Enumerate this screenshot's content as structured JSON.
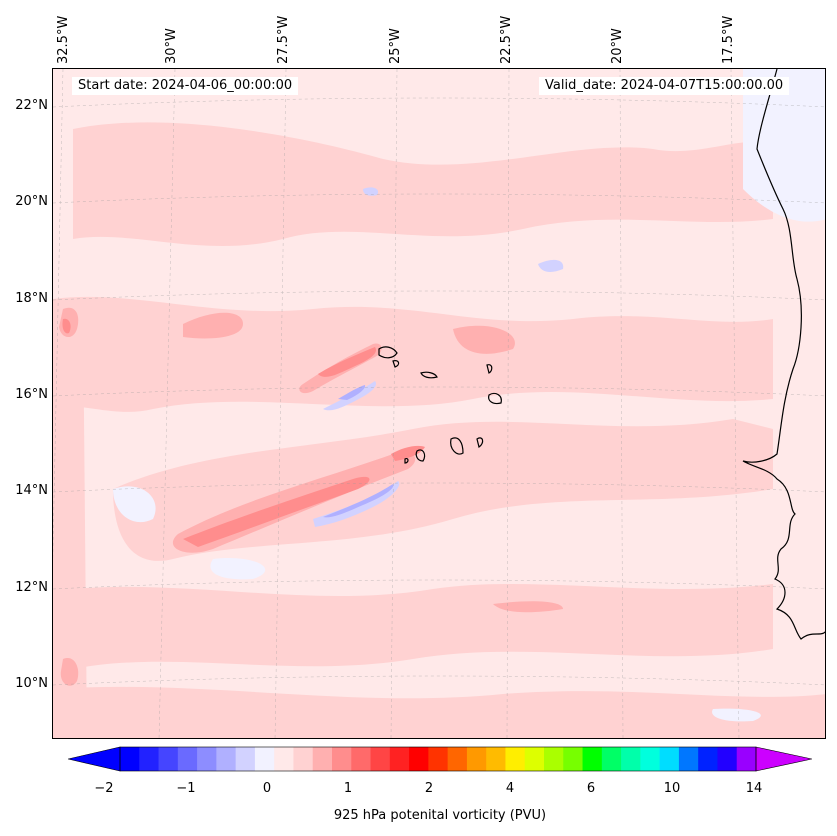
{
  "header": {
    "start_date": "Start date: 2024-04-06_00:00:00",
    "valid_date": "Valid_date: 2024-04-07T15:00:00.00"
  },
  "axes": {
    "longitude_labels": [
      "32.5°W",
      "30°W",
      "27.5°W",
      "25°W",
      "22.5°W",
      "20°W",
      "17.5°W"
    ],
    "latitude_labels": [
      "22°N",
      "20°N",
      "18°N",
      "16°N",
      "14°N",
      "12°N",
      "10°N"
    ]
  },
  "colorbar": {
    "label": "925 hPa potenital vorticity (PVU)",
    "tick_labels": [
      "−2",
      "−1",
      "0",
      "1",
      "2",
      "4",
      "6",
      "10",
      "14"
    ],
    "colors": [
      "#0000ff",
      "#2222ff",
      "#4545ff",
      "#6a6aff",
      "#8d8dff",
      "#b0b0ff",
      "#d2d2ff",
      "#f2f2ff",
      "#ffe9e9",
      "#ffd2d2",
      "#ffb0b0",
      "#ff8d8d",
      "#ff6a6a",
      "#ff4545",
      "#ff2222",
      "#ff0000",
      "#ff3300",
      "#ff6600",
      "#ff9900",
      "#ffbb00",
      "#ffee00",
      "#ddff00",
      "#aaff00",
      "#77ff00",
      "#00ff00",
      "#00ff66",
      "#00ffaa",
      "#00ffdd",
      "#00ddff",
      "#0077ff",
      "#0022ff",
      "#2200ff",
      "#9900ff"
    ],
    "extend_min_color": "#0000ff",
    "extend_max_color": "#cc00ff"
  },
  "colors": {
    "background_field": "#ffe9e9",
    "light_positive": "#ffd2d2",
    "moderate_positive": "#ffb0b0",
    "strong_positive": "#ff8d8d",
    "weak_negative": "#f2f2ff",
    "negative": "#d2d2ff",
    "strong_negative": "#b0b0ff",
    "coastline": "#000000"
  }
}
